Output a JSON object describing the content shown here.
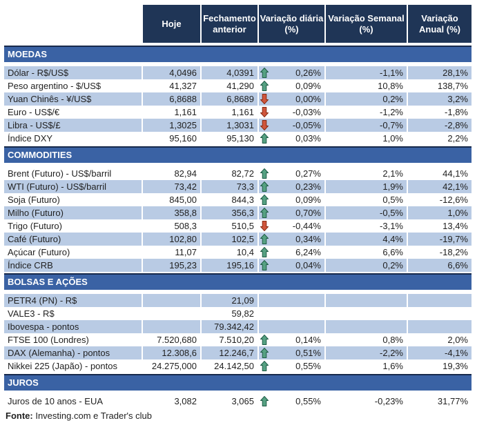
{
  "header": {
    "columns": [
      "Hoje",
      "Fechamento\nanterior",
      "Variação diária\n(%)",
      "Variação Semanal\n(%)",
      "Variação\nAnual (%)"
    ]
  },
  "sections": [
    {
      "title": "MOEDAS",
      "rows": [
        {
          "label": "Dólar - R$/US$",
          "hoje": "4,0496",
          "fechamento": "4,0391",
          "arrow": "up",
          "variacao_diaria": "0,26%",
          "variacao_semanal": "-1,1%",
          "variacao_anual": "28,1%",
          "shaded": true
        },
        {
          "label": "Peso argentino - $/US$",
          "hoje": "41,327",
          "fechamento": "41,290",
          "arrow": "up",
          "variacao_diaria": "0,09%",
          "variacao_semanal": "10,8%",
          "variacao_anual": "138,7%",
          "shaded": false
        },
        {
          "label": "Yuan Chinês - ¥/US$",
          "hoje": "6,8688",
          "fechamento": "6,8689",
          "arrow": "down",
          "variacao_diaria": "0,00%",
          "variacao_semanal": "0,2%",
          "variacao_anual": "3,2%",
          "shaded": true
        },
        {
          "label": "Euro - US$/€",
          "hoje": "1,161",
          "fechamento": "1,161",
          "arrow": "down",
          "variacao_diaria": "-0,03%",
          "variacao_semanal": "-1,2%",
          "variacao_anual": "-1,8%",
          "shaded": false
        },
        {
          "label": "Libra - US$/£",
          "hoje": "1,3025",
          "fechamento": "1,3031",
          "arrow": "down",
          "variacao_diaria": "-0,05%",
          "variacao_semanal": "-0,7%",
          "variacao_anual": "-2,8%",
          "shaded": true
        },
        {
          "label": "Índice DXY",
          "hoje": "95,160",
          "fechamento": "95,130",
          "arrow": "up",
          "variacao_diaria": "0,03%",
          "variacao_semanal": "1,0%",
          "variacao_anual": "2,2%",
          "shaded": false
        }
      ]
    },
    {
      "title": "COMMODITIES",
      "rows": [
        {
          "label": "Brent (Futuro) - US$/barril",
          "hoje": "82,94",
          "fechamento": "82,72",
          "arrow": "up",
          "variacao_diaria": "0,27%",
          "variacao_semanal": "2,1%",
          "variacao_anual": "44,1%",
          "shaded": false
        },
        {
          "label": "WTI (Futuro) - US$/barril",
          "hoje": "73,42",
          "fechamento": "73,3",
          "arrow": "up",
          "variacao_diaria": "0,23%",
          "variacao_semanal": "1,9%",
          "variacao_anual": "42,1%",
          "shaded": true
        },
        {
          "label": "Soja (Futuro)",
          "hoje": "845,00",
          "fechamento": "844,3",
          "arrow": "up",
          "variacao_diaria": "0,09%",
          "variacao_semanal": "0,5%",
          "variacao_anual": "-12,6%",
          "shaded": false
        },
        {
          "label": "Milho (Futuro)",
          "hoje": "358,8",
          "fechamento": "356,3",
          "arrow": "up",
          "variacao_diaria": "0,70%",
          "variacao_semanal": "-0,5%",
          "variacao_anual": "1,0%",
          "shaded": true
        },
        {
          "label": "Trigo (Futuro)",
          "hoje": "508,3",
          "fechamento": "510,5",
          "arrow": "down",
          "variacao_diaria": "-0,44%",
          "variacao_semanal": "-3,1%",
          "variacao_anual": "13,4%",
          "shaded": false
        },
        {
          "label": "Café (Futuro)",
          "hoje": "102,80",
          "fechamento": "102,5",
          "arrow": "up",
          "variacao_diaria": "0,34%",
          "variacao_semanal": "4,4%",
          "variacao_anual": "-19,7%",
          "shaded": true
        },
        {
          "label": "Açúcar (Futuro)",
          "hoje": "11,07",
          "fechamento": "10,4",
          "arrow": "up",
          "variacao_diaria": "6,24%",
          "variacao_semanal": "6,6%",
          "variacao_anual": "-18,2%",
          "shaded": false
        },
        {
          "label": "Índice CRB",
          "hoje": "195,23",
          "fechamento": "195,16",
          "arrow": "up",
          "variacao_diaria": "0,04%",
          "variacao_semanal": "0,2%",
          "variacao_anual": "6,6%",
          "shaded": true
        }
      ]
    },
    {
      "title": "BOLSAS E AÇÕES",
      "rows": [
        {
          "label": "PETR4 (PN) - R$",
          "hoje": "",
          "fechamento": "21,09",
          "arrow": "none",
          "variacao_diaria": "",
          "variacao_semanal": "",
          "variacao_anual": "",
          "shaded": true
        },
        {
          "label": "VALE3 - R$",
          "hoje": "",
          "fechamento": "59,82",
          "arrow": "none",
          "variacao_diaria": "",
          "variacao_semanal": "",
          "variacao_anual": "",
          "shaded": false
        },
        {
          "label": "Ibovespa - pontos",
          "hoje": "",
          "fechamento": "79.342,42",
          "arrow": "none",
          "variacao_diaria": "",
          "variacao_semanal": "",
          "variacao_anual": "",
          "shaded": true
        },
        {
          "label": "FTSE 100 (Londres)",
          "hoje": "7.520,680",
          "fechamento": "7.510,20",
          "arrow": "up",
          "variacao_diaria": "0,14%",
          "variacao_semanal": "0,8%",
          "variacao_anual": "2,0%",
          "shaded": false
        },
        {
          "label": "DAX (Alemanha) - pontos",
          "hoje": "12.308,6",
          "fechamento": "12.246,7",
          "arrow": "up",
          "variacao_diaria": "0,51%",
          "variacao_semanal": "-2,2%",
          "variacao_anual": "-4,1%",
          "shaded": true
        },
        {
          "label": "Nikkei 225 (Japão) - pontos",
          "hoje": "24.275,000",
          "fechamento": "24.142,50",
          "arrow": "up",
          "variacao_diaria": "0,55%",
          "variacao_semanal": "1,6%",
          "variacao_anual": "19,3%",
          "shaded": false
        }
      ]
    },
    {
      "title": "JUROS",
      "rows": [
        {
          "label": "Juros de 10 anos - EUA",
          "hoje": "3,082",
          "fechamento": "3,065",
          "arrow": "up",
          "variacao_diaria": "0,55%",
          "variacao_semanal": "-0,23%",
          "variacao_anual": "31,77%",
          "shaded": false
        }
      ]
    }
  ],
  "footer": {
    "label": "Fonte:",
    "text": " Investing.com e Trader's club"
  },
  "colors": {
    "header_bg": "#1F3556",
    "section_bg": "#3A62A4",
    "section_border": "#17294B",
    "row_shade": "#B9CBE4",
    "up_arrow": "#56A182",
    "up_arrow_border": "#1E5B45",
    "down_arrow": "#D0563C",
    "down_arrow_border": "#872A12"
  }
}
